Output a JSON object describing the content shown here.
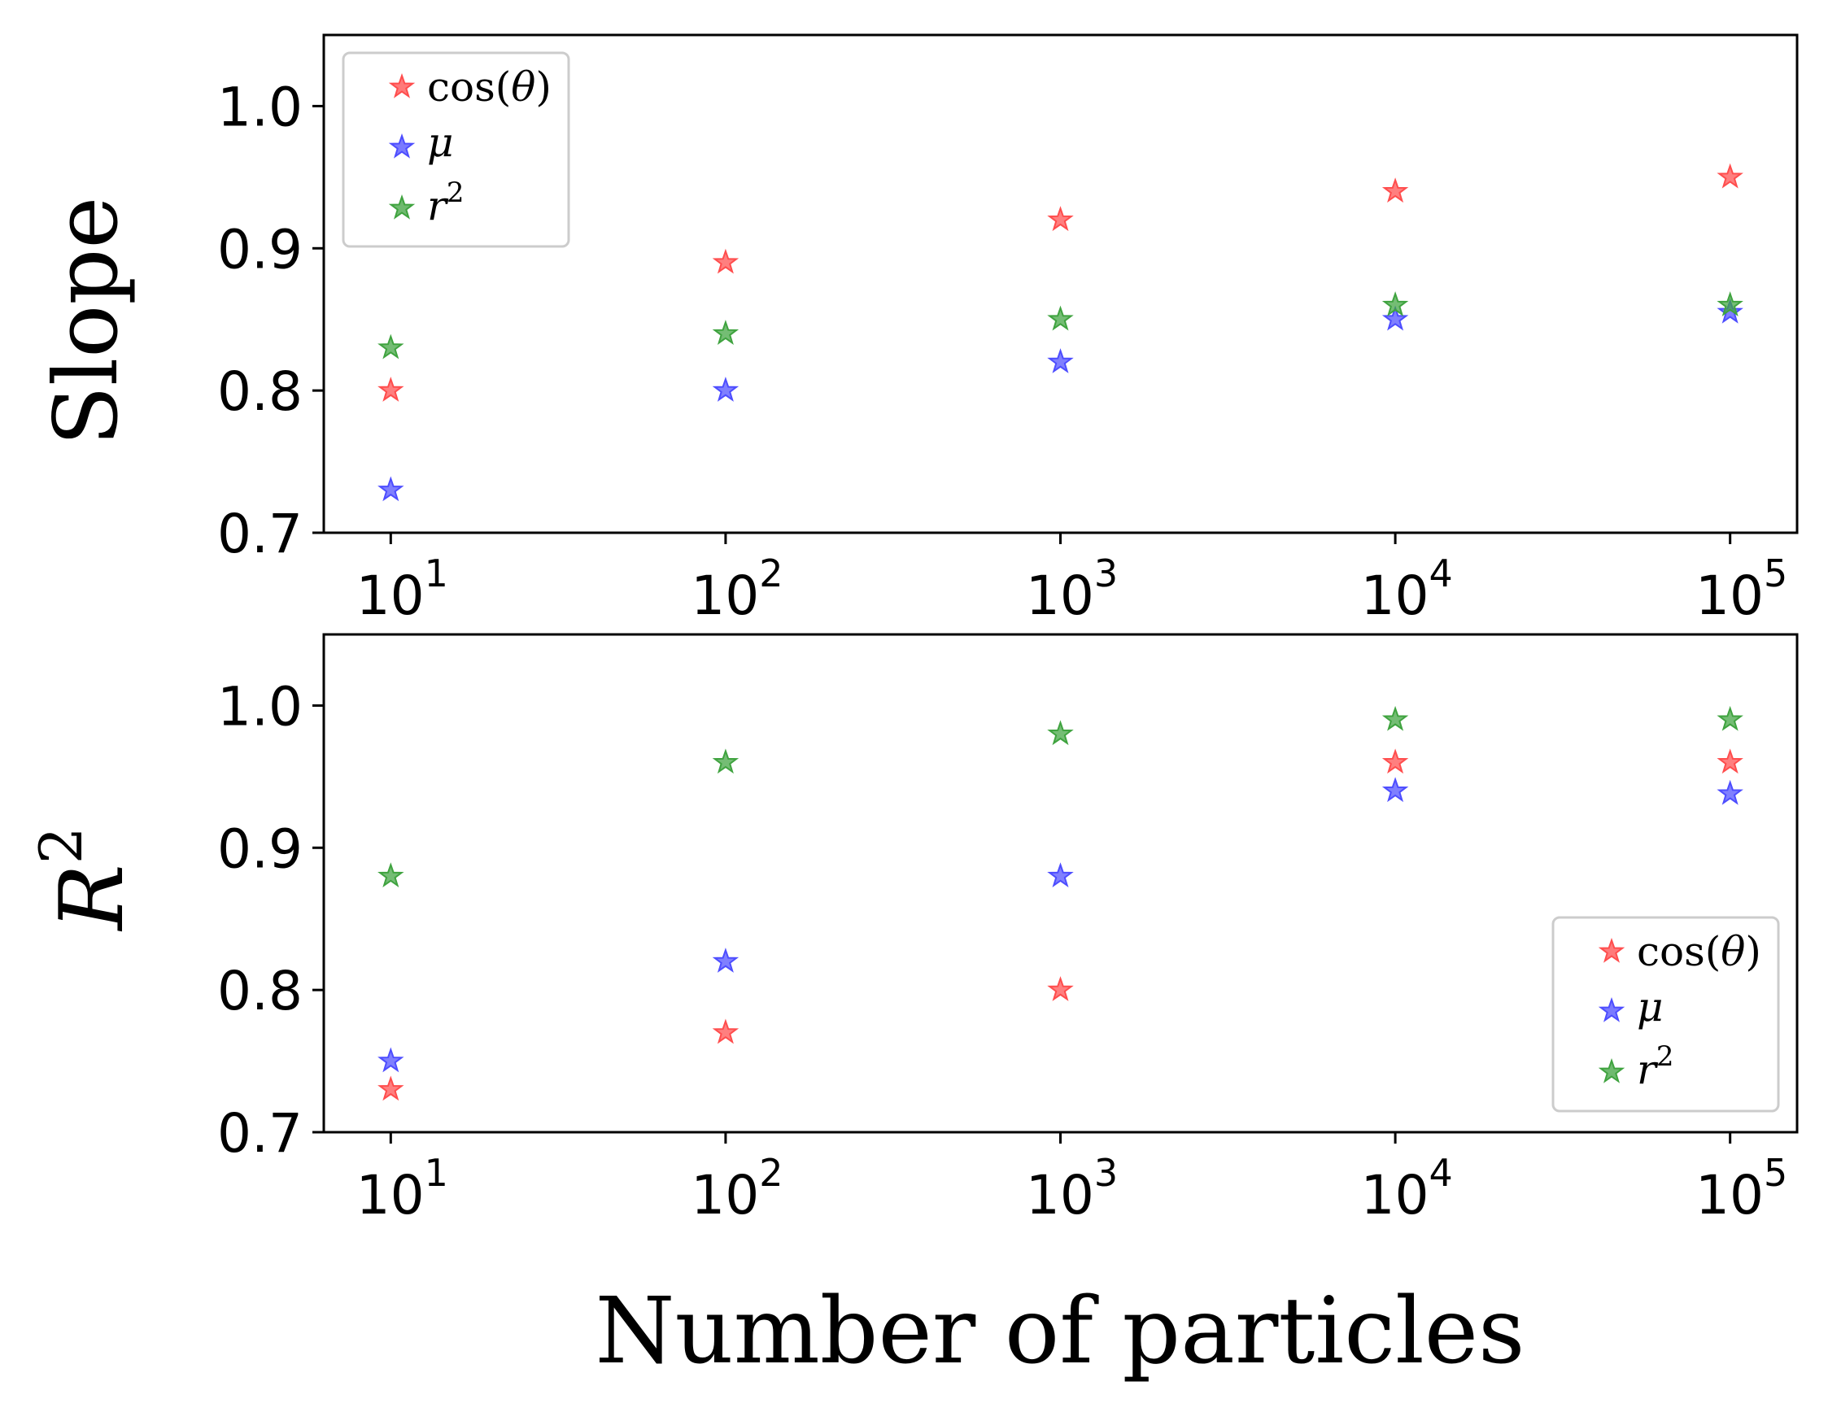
{
  "chart_data": [
    {
      "type": "scatter",
      "xscale": "log",
      "x": [
        10,
        100,
        1000,
        10000,
        100000
      ],
      "xlim_exp": [
        0.8,
        5.2
      ],
      "ylim": [
        0.7,
        1.05
      ],
      "yticks": [
        "0.7",
        "0.8",
        "0.9",
        "1.0"
      ],
      "xtick_base": "10",
      "xtick_exponents": [
        "1",
        "2",
        "3",
        "4",
        "5"
      ],
      "ylabel": "Slope",
      "xlabel": "",
      "legend_position": "top-left",
      "series": [
        {
          "name": "cos(θ)",
          "color": "#ff4d4d",
          "values": [
            0.8,
            0.89,
            0.92,
            0.94,
            0.95
          ]
        },
        {
          "name": "μ",
          "color": "#4d4dff",
          "values": [
            0.73,
            0.8,
            0.82,
            0.85,
            0.855
          ]
        },
        {
          "name": "r2",
          "color": "#3fa33f",
          "values": [
            0.83,
            0.84,
            0.85,
            0.86,
            0.86
          ]
        }
      ]
    },
    {
      "type": "scatter",
      "xscale": "log",
      "x": [
        10,
        100,
        1000,
        10000,
        100000
      ],
      "xlim_exp": [
        0.8,
        5.2
      ],
      "ylim": [
        0.7,
        1.05
      ],
      "yticks": [
        "0.7",
        "0.8",
        "0.9",
        "1.0"
      ],
      "xtick_base": "10",
      "xtick_exponents": [
        "1",
        "2",
        "3",
        "4",
        "5"
      ],
      "ylabel": "R",
      "ylabel_sup": "2",
      "xlabel": "Number of particles",
      "legend_position": "bottom-right",
      "series": [
        {
          "name": "cos(θ)",
          "color": "#ff4d4d",
          "values": [
            0.73,
            0.77,
            0.8,
            0.96,
            0.96
          ]
        },
        {
          "name": "μ",
          "color": "#4d4dff",
          "values": [
            0.75,
            0.82,
            0.88,
            0.94,
            0.938
          ]
        },
        {
          "name": "r2",
          "color": "#3fa33f",
          "values": [
            0.88,
            0.96,
            0.98,
            0.99,
            0.99
          ]
        }
      ]
    }
  ],
  "legend_labels": {
    "cos": "cos(",
    "theta": "θ",
    "close": ")",
    "mu": "μ",
    "r": "r",
    "r_sup": "2"
  }
}
